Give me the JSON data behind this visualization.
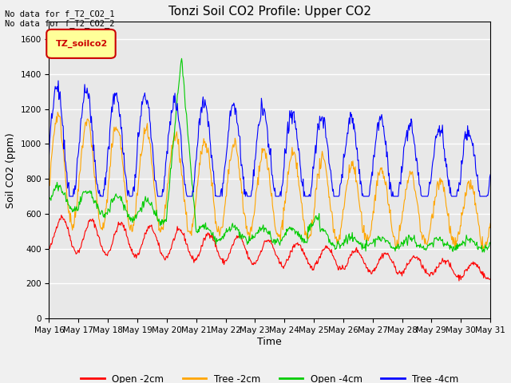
{
  "title": "Tonzi Soil CO2 Profile: Upper CO2",
  "ylabel": "Soil CO2 (ppm)",
  "xlabel": "Time",
  "annotation_text": "No data for f_T2_CO2_1\nNo data for f_T2_CO2_2",
  "legend_label_text": "TZ_soilco2",
  "ylim": [
    0,
    1700
  ],
  "yticks": [
    0,
    200,
    400,
    600,
    800,
    1000,
    1200,
    1400,
    1600
  ],
  "xtick_labels": [
    "May 16",
    "May 17",
    "May 18",
    "May 19",
    "May 20",
    "May 21",
    "May 22",
    "May 23",
    "May 24",
    "May 25",
    "May 26",
    "May 27",
    "May 28",
    "May 29",
    "May 30",
    "May 31"
  ],
  "line_colors": {
    "open_2cm": "#ff0000",
    "tree_2cm": "#ffa500",
    "open_4cm": "#00cc00",
    "tree_4cm": "#0000ff"
  },
  "line_labels": [
    "Open -2cm",
    "Tree -2cm",
    "Open -4cm",
    "Tree -4cm"
  ],
  "bg_color": "#e8e8e8",
  "grid_color": "#ffffff",
  "n_points": 720
}
